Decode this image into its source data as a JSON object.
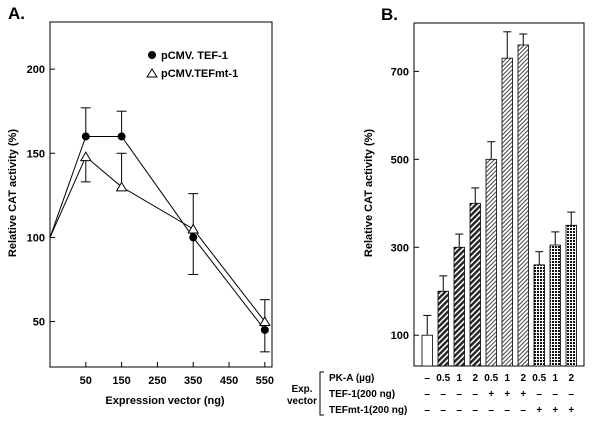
{
  "chart_data": [
    {
      "panel_label": "A.",
      "type": "line",
      "xlabel": "Expression vector (ng)",
      "ylabel": "Relative CAT activity (%)",
      "x_ticks": [
        "50",
        "150",
        "250",
        "350",
        "450",
        "550"
      ],
      "y_ticks": [
        "50",
        "100",
        "150",
        "200"
      ],
      "xlim": [
        -50,
        570
      ],
      "ylim": [
        23,
        228
      ],
      "series": [
        {
          "name": "pCMV. TEF-1",
          "marker": "filled-circle",
          "x": [
            -50,
            50,
            150,
            350,
            550
          ],
          "y": [
            100,
            160,
            160,
            100,
            45
          ],
          "err": [
            0,
            17,
            15,
            22,
            13
          ],
          "err_dir": [
            "none",
            "up",
            "up",
            "down",
            "down"
          ]
        },
        {
          "name": "pCMV.TEFmt-1",
          "marker": "open-triangle",
          "x": [
            -50,
            50,
            150,
            350,
            550
          ],
          "y": [
            100,
            148,
            130,
            105,
            50
          ],
          "err": [
            0,
            15,
            20,
            21,
            13
          ],
          "err_dir": [
            "none",
            "down",
            "up",
            "up",
            "up"
          ]
        }
      ]
    },
    {
      "panel_label": "B.",
      "type": "bar",
      "ylabel": "Relative CAT activity (%)",
      "y_ticks": [
        "100",
        "300",
        "500",
        "700"
      ],
      "ylim": [
        30,
        810
      ],
      "values": [
        100,
        200,
        300,
        400,
        500,
        730,
        760,
        260,
        305,
        350
      ],
      "errors": [
        45,
        35,
        30,
        35,
        40,
        60,
        25,
        30,
        30,
        30
      ],
      "bar_fills": [
        "white",
        "dark-hatch",
        "dark-hatch",
        "dark-hatch",
        "light-hatch",
        "light-hatch",
        "light-hatch",
        "checker",
        "checker",
        "checker"
      ],
      "table": {
        "group_label": [
          "Exp.",
          "vector"
        ],
        "rows": [
          {
            "label": "PK-A (µg)",
            "cells": [
              "–",
              "0.5",
              "1",
              "2",
              "0.5",
              "1",
              "2",
              "0.5",
              "1",
              "2"
            ]
          },
          {
            "label": "TEF-1(200 ng)",
            "cells": [
              "–",
              "–",
              "–",
              "–",
              "+",
              "+",
              "+",
              "–",
              "–",
              "–"
            ]
          },
          {
            "label": "TEFmt-1(200 ng)",
            "cells": [
              "–",
              "–",
              "–",
              "–",
              "–",
              "–",
              "–",
              "+",
              "+",
              "+"
            ]
          }
        ]
      }
    }
  ]
}
